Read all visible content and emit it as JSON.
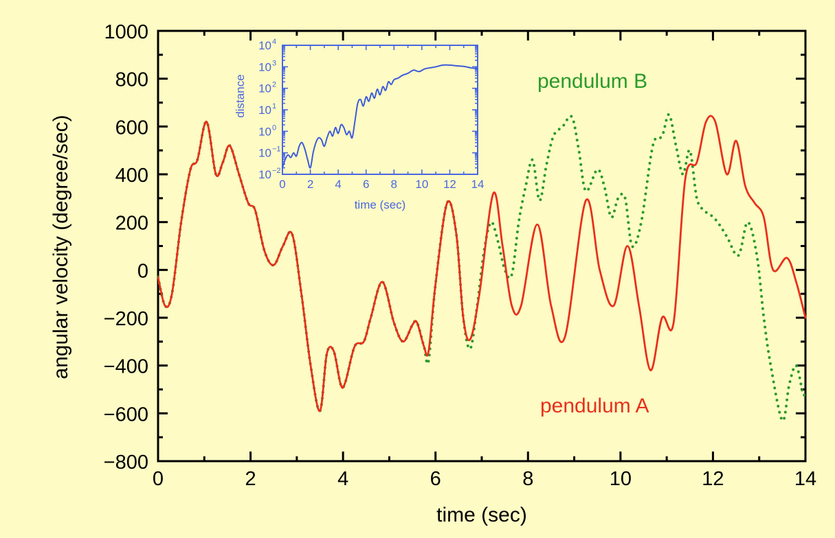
{
  "chart_data": [
    {
      "type": "line",
      "title": "",
      "xlabel": "time (sec)",
      "ylabel": "angular velocity (degree/sec)",
      "xlim": [
        0,
        14
      ],
      "ylim": [
        -800,
        1000
      ],
      "xticks": [
        "0",
        "2",
        "4",
        "6",
        "8",
        "10",
        "12",
        "14"
      ],
      "yticks": [
        "1000",
        "800",
        "600",
        "400",
        "200",
        "0",
        "−200",
        "−400",
        "−600",
        "−800"
      ],
      "grid": false,
      "series": [
        {
          "name": "pendulum B",
          "color": "#2a9a2a",
          "style": "dotted",
          "x": [
            0,
            0.15,
            0.3,
            0.5,
            0.7,
            0.85,
            1.05,
            1.25,
            1.4,
            1.55,
            1.75,
            1.95,
            2.1,
            2.3,
            2.5,
            2.7,
            2.9,
            3.1,
            3.3,
            3.5,
            3.65,
            3.8,
            3.95,
            4.05,
            4.25,
            4.45,
            4.6,
            4.85,
            5.1,
            5.3,
            5.5,
            5.6,
            5.75,
            5.85,
            6.0,
            6.25,
            6.45,
            6.6,
            6.75,
            6.9,
            7.05,
            7.2,
            7.35,
            7.5,
            7.65,
            7.8,
            7.95,
            8.1,
            8.25,
            8.4,
            8.55,
            8.75,
            8.95,
            9.1,
            9.25,
            9.5,
            9.65,
            9.8,
            9.95,
            10.1,
            10.25,
            10.45,
            10.7,
            10.9,
            11.05,
            11.2,
            11.35,
            11.5,
            11.65,
            11.8,
            11.95,
            12.1,
            12.3,
            12.55,
            12.75,
            12.95,
            13.1,
            13.25,
            13.5,
            13.65,
            13.8,
            13.95,
            14.0
          ],
          "y": [
            -30,
            -150,
            -100,
            200,
            420,
            460,
            620,
            400,
            450,
            520,
            400,
            280,
            250,
            80,
            20,
            100,
            150,
            -100,
            -400,
            -590,
            -350,
            -340,
            -480,
            -470,
            -320,
            -300,
            -200,
            -50,
            -220,
            -300,
            -230,
            -220,
            -320,
            -380,
            -60,
            280,
            150,
            -200,
            -330,
            -150,
            80,
            200,
            120,
            0,
            -20,
            200,
            350,
            460,
            290,
            440,
            560,
            600,
            640,
            500,
            330,
            420,
            350,
            220,
            300,
            300,
            100,
            200,
            520,
            560,
            650,
            520,
            400,
            500,
            300,
            250,
            230,
            200,
            140,
            60,
            200,
            60,
            -200,
            -400,
            -630,
            -480,
            -400,
            -520,
            -500
          ]
        },
        {
          "name": "pendulum A",
          "color": "#e8301c",
          "style": "solid",
          "x": [
            0,
            0.15,
            0.3,
            0.5,
            0.7,
            0.85,
            1.05,
            1.25,
            1.4,
            1.55,
            1.75,
            1.95,
            2.1,
            2.3,
            2.5,
            2.7,
            2.9,
            3.1,
            3.3,
            3.5,
            3.65,
            3.8,
            3.95,
            4.05,
            4.25,
            4.45,
            4.6,
            4.85,
            5.1,
            5.3,
            5.5,
            5.6,
            5.75,
            5.85,
            6.0,
            6.25,
            6.45,
            6.6,
            6.75,
            6.95,
            7.25,
            7.45,
            7.65,
            7.85,
            8.2,
            8.5,
            8.8,
            9.25,
            9.55,
            9.85,
            10.15,
            10.4,
            10.65,
            10.9,
            11.15,
            11.4,
            11.65,
            11.85,
            12.05,
            12.3,
            12.5,
            12.7,
            12.9,
            13.1,
            13.3,
            13.6,
            13.8,
            14.0
          ],
          "y": [
            -30,
            -150,
            -100,
            200,
            420,
            460,
            620,
            400,
            450,
            520,
            400,
            280,
            250,
            80,
            20,
            100,
            150,
            -100,
            -400,
            -590,
            -350,
            -340,
            -480,
            -470,
            -320,
            -300,
            -200,
            -50,
            -220,
            -300,
            -230,
            -220,
            -320,
            -340,
            -60,
            280,
            150,
            -200,
            -290,
            -100,
            320,
            100,
            -150,
            -150,
            190,
            -150,
            -280,
            290,
            0,
            -150,
            100,
            -150,
            -420,
            -200,
            -220,
            380,
            450,
            620,
            620,
            400,
            540,
            350,
            280,
            220,
            0,
            50,
            -50,
            -200
          ]
        }
      ],
      "annotations": [
        "pendulum B",
        "pendulum A"
      ]
    },
    {
      "type": "line",
      "title": "",
      "xlabel": "time (sec)",
      "ylabel": "distance",
      "xlim": [
        0,
        14
      ],
      "ylim": [
        -2,
        4
      ],
      "yscale": "log",
      "xticks": [
        "0",
        "2",
        "4",
        "6",
        "8",
        "10",
        "12",
        "14"
      ],
      "yticks": [
        {
          "base": "10",
          "exp": "4"
        },
        {
          "base": "10",
          "exp": "3"
        },
        {
          "base": "10",
          "exp": "2"
        },
        {
          "base": "10",
          "exp": "1"
        },
        {
          "base": "10",
          "exp": "0"
        },
        {
          "base": "10",
          "exp": "−1"
        },
        {
          "base": "10",
          "exp": "−2"
        }
      ],
      "color": "#3b5bdb",
      "series": [
        {
          "x": [
            0,
            0.2,
            0.4,
            0.6,
            0.8,
            1.0,
            1.2,
            1.4,
            1.6,
            1.8,
            2.0,
            2.2,
            2.4,
            2.6,
            2.8,
            3.0,
            3.2,
            3.4,
            3.6,
            3.8,
            4.0,
            4.2,
            4.4,
            4.6,
            4.8,
            5.0,
            5.2,
            5.4,
            5.6,
            5.8,
            6.0,
            6.2,
            6.4,
            6.6,
            6.8,
            7.0,
            7.2,
            7.4,
            7.6,
            7.8,
            8.0,
            8.3,
            8.6,
            9.0,
            9.4,
            9.8,
            10.2,
            10.6,
            11.0,
            11.5,
            12.0,
            12.5,
            13.0,
            13.5,
            14.0
          ],
          "y": [
            0.02,
            0.05,
            0.08,
            0.06,
            0.1,
            0.07,
            0.2,
            0.3,
            0.15,
            0.05,
            0.02,
            0.1,
            0.3,
            0.5,
            0.4,
            0.2,
            0.5,
            1.0,
            0.6,
            1.5,
            0.8,
            2.0,
            1.5,
            0.7,
            1.0,
            0.5,
            3.0,
            20,
            30,
            15,
            40,
            25,
            60,
            35,
            90,
            50,
            120,
            80,
            200,
            150,
            250,
            300,
            400,
            500,
            700,
            600,
            800,
            900,
            1000,
            1200,
            1200,
            1100,
            1050,
            900,
            800
          ]
        }
      ]
    }
  ]
}
